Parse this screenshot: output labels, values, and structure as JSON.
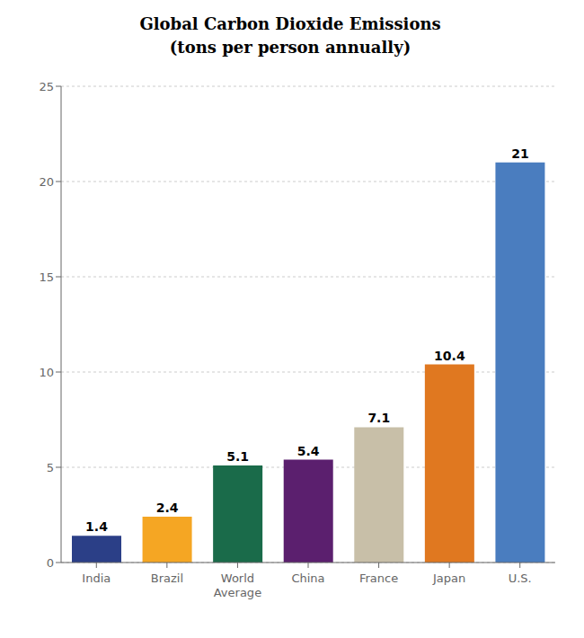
{
  "chart_data": {
    "type": "bar",
    "title": "Global Carbon Dioxide Emissions",
    "subtitle": "(tons per person annually)",
    "categories": [
      "India",
      "Brazil",
      "World\nAverage",
      "China",
      "France",
      "Japan",
      "U.S."
    ],
    "values": [
      1.4,
      2.4,
      5.1,
      5.4,
      7.1,
      10.4,
      21
    ],
    "colors": [
      "#2b3f87",
      "#f5a623",
      "#1a6b4a",
      "#5b1f6e",
      "#c8bfa8",
      "#e07820",
      "#4a7dbf"
    ],
    "ylim": [
      0,
      25
    ],
    "yticks": [
      0,
      5,
      10,
      15,
      20,
      25
    ],
    "grid": true,
    "data_labels": true
  }
}
